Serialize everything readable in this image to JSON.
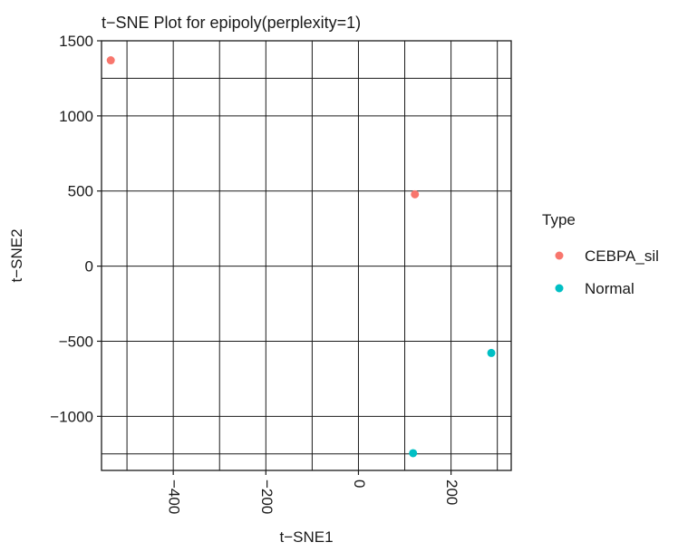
{
  "chart_data": {
    "type": "scatter",
    "title": "t−SNE Plot for epipoly(perplexity=1)",
    "xlabel": "t−SNE1",
    "ylabel": "t−SNE2",
    "xlim": [
      -555,
      330
    ],
    "ylim": [
      -1360,
      1500
    ],
    "x_ticks": [
      {
        "value": -400,
        "label": "−400"
      },
      {
        "value": -200,
        "label": "−200"
      },
      {
        "value": 0,
        "label": "0"
      },
      {
        "value": 200,
        "label": "200"
      }
    ],
    "y_ticks": [
      {
        "value": -1000,
        "label": "−1000"
      },
      {
        "value": -500,
        "label": "−500"
      },
      {
        "value": 0,
        "label": "0"
      },
      {
        "value": 500,
        "label": "500"
      },
      {
        "value": 1000,
        "label": "1000"
      },
      {
        "value": 1500,
        "label": "1500"
      }
    ],
    "x_grid": [
      -500,
      -400,
      -300,
      -200,
      -100,
      0,
      100,
      200,
      300
    ],
    "y_grid": [
      -1250,
      -1000,
      -500,
      0,
      500,
      1000,
      1250
    ],
    "grid": true,
    "legend": {
      "title": "Type",
      "position": "right"
    },
    "series": [
      {
        "name": "CEBPA_sil",
        "color": "#F8766D",
        "points": [
          [
            -535,
            1370
          ],
          [
            122,
            478
          ]
        ]
      },
      {
        "name": "Normal",
        "color": "#00BFC4",
        "points": [
          [
            287,
            -578
          ],
          [
            118,
            -1245
          ]
        ]
      }
    ]
  }
}
